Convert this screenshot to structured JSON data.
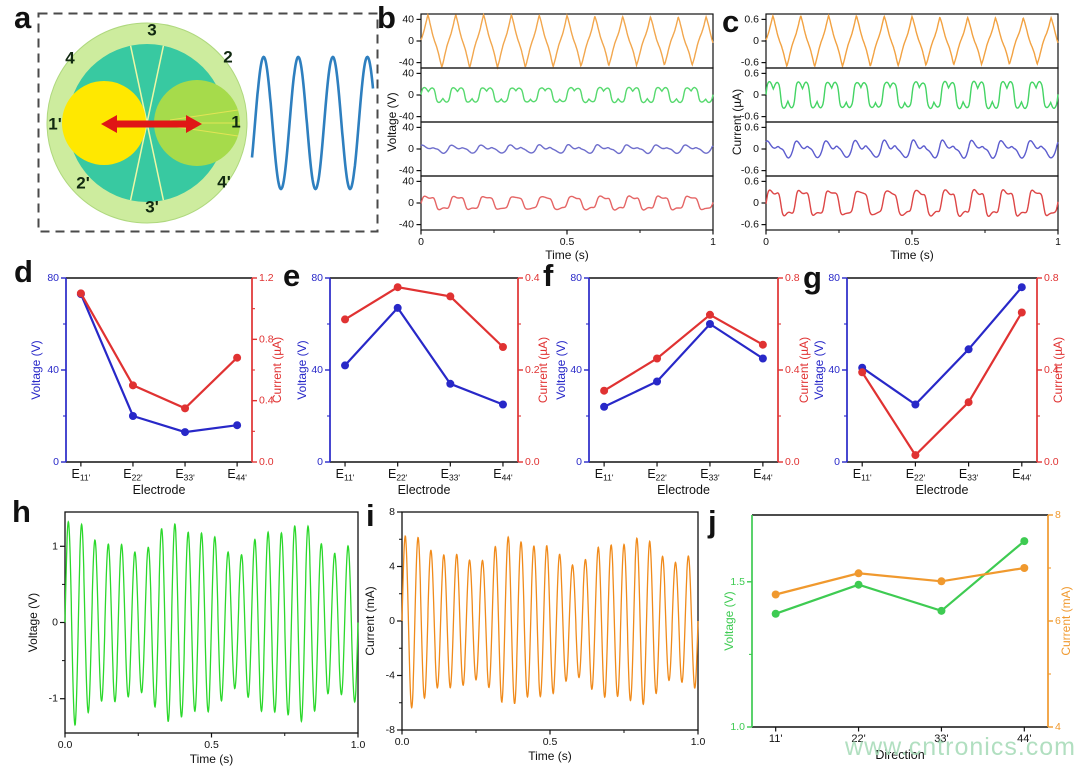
{
  "figure": {
    "watermark": "www.cntronics.com",
    "watermark_color": "#a9dcba"
  },
  "panel_a": {
    "label": "a",
    "ring_labels": [
      "1",
      "2",
      "3",
      "4",
      "1'",
      "2'",
      "3'",
      "4'"
    ],
    "colors": {
      "outer_ring": "#cdec9e",
      "inner_disc": "#38c9a1",
      "left_circle": "#ffe800",
      "right_circle": "#a6db4b",
      "arrow": "#e01616",
      "spoke": "#edf7a6",
      "wave": "#2e7fbf"
    },
    "wave": {
      "cycles": 3.5,
      "color": "#2e7fbf"
    }
  },
  "chart_data": [
    {
      "id": "b",
      "panel": "b",
      "type": "stacked_wave",
      "ylabel": "Voltage (V)",
      "xlabel": "Time (s)",
      "xticks": [
        "0",
        "0.5",
        "1"
      ],
      "xminor": [
        0.25,
        0.75
      ],
      "row_ticks": [
        40,
        0,
        -40
      ],
      "row_range": 50,
      "series": [
        {
          "name": "trace-1",
          "color": "#f2a74e",
          "shape": "triangle",
          "amplitude": 45,
          "cycles": 10.5
        },
        {
          "name": "trace-2",
          "color": "#56d96e",
          "shape": "humps",
          "amplitude": 13,
          "cycles": 10
        },
        {
          "name": "trace-3",
          "color": "#6e6ecc",
          "shape": "ripple",
          "amplitude": 8,
          "cycles": 10
        },
        {
          "name": "trace-4",
          "color": "#e56565",
          "shape": "rsq",
          "amplitude": 14,
          "cycles": 10
        }
      ]
    },
    {
      "id": "c",
      "panel": "c",
      "type": "stacked_wave",
      "ylabel": "Current (µA)",
      "xlabel": "Time (s)",
      "xticks": [
        "0",
        "0.5",
        "1"
      ],
      "xminor": [
        0.25,
        0.75
      ],
      "row_ticks": [
        0.6,
        0,
        -0.6
      ],
      "row_range": 0.75,
      "series": [
        {
          "name": "trace-1",
          "color": "#f2a242",
          "shape": "triangle",
          "amplitude": 0.65,
          "cycles": 10.5
        },
        {
          "name": "trace-2",
          "color": "#44d464",
          "shape": "humps",
          "amplitude": 0.35,
          "cycles": 10
        },
        {
          "name": "trace-3",
          "color": "#5c5cce",
          "shape": "ripple",
          "amplitude": 0.25,
          "cycles": 10
        },
        {
          "name": "trace-4",
          "color": "#dd4646",
          "shape": "rsq",
          "amplitude": 0.4,
          "cycles": 10
        }
      ]
    },
    {
      "id": "d",
      "panel": "d",
      "type": "dual_line",
      "xlabel": "Electrode",
      "categories": [
        "11'",
        "22'",
        "33'",
        "44'"
      ],
      "cat_prefix": "E",
      "left": {
        "label": "Voltage (V)",
        "color": "#2828c8",
        "min": 0,
        "max": 80,
        "ticks": [
          0,
          40,
          80
        ],
        "tick_labels": [
          "0",
          "40",
          "80"
        ],
        "minor": [
          20,
          60
        ],
        "values": [
          73,
          20,
          13,
          16
        ]
      },
      "right": {
        "label": "Current (µA)",
        "color": "#e03232",
        "min": 0,
        "max": 1.2,
        "ticks": [
          0,
          0.4,
          0.8,
          1.2
        ],
        "tick_labels": [
          "0.0",
          "0.4",
          "0.8",
          "1.2"
        ],
        "minor": [
          0.2,
          0.6,
          1.0
        ],
        "values": [
          1.1,
          0.5,
          0.35,
          0.68
        ]
      }
    },
    {
      "id": "e",
      "panel": "e",
      "type": "dual_line",
      "xlabel": "Electrode",
      "categories": [
        "11'",
        "22'",
        "33'",
        "44'"
      ],
      "cat_prefix": "E",
      "left": {
        "label": "Voltage (V)",
        "color": "#2828c8",
        "min": 0,
        "max": 80,
        "ticks": [
          0,
          40,
          80
        ],
        "tick_labels": [
          "0",
          "40",
          "80"
        ],
        "minor": [
          20,
          60
        ],
        "values": [
          42,
          67,
          34,
          25
        ]
      },
      "right": {
        "label": "Current (µA)",
        "color": "#e03232",
        "min": 0,
        "max": 0.4,
        "ticks": [
          0,
          0.2,
          0.4
        ],
        "tick_labels": [
          "0.0",
          "0.2",
          "0.4"
        ],
        "minor": [
          0.1,
          0.3
        ],
        "values": [
          0.31,
          0.38,
          0.36,
          0.25
        ]
      }
    },
    {
      "id": "f",
      "panel": "f",
      "type": "dual_line",
      "xlabel": "Electrode",
      "categories": [
        "11'",
        "22'",
        "33'",
        "44'"
      ],
      "cat_prefix": "E",
      "left": {
        "label": "Voltage (V)",
        "color": "#2828c8",
        "min": 0,
        "max": 80,
        "ticks": [
          0,
          40,
          80
        ],
        "tick_labels": [
          "0",
          "40",
          "80"
        ],
        "minor": [
          20,
          60
        ],
        "values": [
          24,
          35,
          60,
          45
        ]
      },
      "right": {
        "label": "Current (µA)",
        "color": "#e03232",
        "min": 0,
        "max": 0.8,
        "ticks": [
          0,
          0.4,
          0.8
        ],
        "tick_labels": [
          "0.0",
          "0.4",
          "0.8"
        ],
        "minor": [
          0.2,
          0.6
        ],
        "values": [
          0.31,
          0.45,
          0.64,
          0.51
        ]
      }
    },
    {
      "id": "g",
      "panel": "g",
      "type": "dual_line",
      "xlabel": "Electrode",
      "categories": [
        "11'",
        "22'",
        "33'",
        "44'"
      ],
      "cat_prefix": "E",
      "left": {
        "label": "Voltage (V)",
        "color": "#2828c8",
        "min": 0,
        "max": 80,
        "ticks": [
          0,
          40,
          80
        ],
        "tick_labels": [
          "0",
          "40",
          "80"
        ],
        "minor": [
          20,
          60
        ],
        "values": [
          41,
          25,
          49,
          76
        ]
      },
      "right": {
        "label": "Current (µA)",
        "color": "#e03232",
        "min": 0,
        "max": 0.8,
        "ticks": [
          0,
          0.4,
          0.8
        ],
        "tick_labels": [
          "0.0",
          "0.4",
          "0.8"
        ],
        "minor": [
          0.2,
          0.6
        ],
        "values": [
          0.39,
          0.03,
          0.26,
          0.65
        ]
      }
    },
    {
      "id": "h",
      "panel": "h",
      "type": "wave",
      "ylabel": "Voltage (V)",
      "xlabel": "Time (s)",
      "color": "#2bd82b",
      "ymin": -1.45,
      "ymax": 1.45,
      "yticks": [
        -1,
        0,
        1
      ],
      "ytick_labels": [
        "-1",
        "0",
        "1"
      ],
      "yminor": [
        -0.5,
        0.5
      ],
      "xticks": [
        "0.0",
        "0.5",
        "1.0"
      ],
      "xminor": [
        0.25,
        0.75
      ],
      "amplitude": 1.27,
      "cycles": 22
    },
    {
      "id": "i",
      "panel": "i",
      "type": "wave",
      "ylabel": "Current (mA)",
      "xlabel": "Time (s)",
      "color": "#f08a1a",
      "ymin": -8,
      "ymax": 8,
      "yticks": [
        -8,
        -4,
        0,
        4,
        8
      ],
      "ytick_labels": [
        "-8",
        "-4",
        "0",
        "4",
        "8"
      ],
      "yminor": [
        -6,
        -2,
        2,
        6
      ],
      "xticks": [
        "0.0",
        "0.5",
        "1.0"
      ],
      "xminor": [
        0.25,
        0.75
      ],
      "amplitude": 6.0,
      "cycles": 23
    },
    {
      "id": "j",
      "panel": "j",
      "type": "dual_line",
      "xlabel": "Direction",
      "categories": [
        "11'",
        "22'",
        "33'",
        "44'"
      ],
      "cat_prefix": "",
      "left": {
        "label": "Voltage (V)",
        "color": "#3ecb52",
        "min": 1.0,
        "max": 1.73,
        "ticks": [
          1.0,
          1.5
        ],
        "tick_labels": [
          "1.0",
          "1.5"
        ],
        "minor": [
          1.25
        ],
        "values": [
          1.39,
          1.49,
          1.4,
          1.64
        ]
      },
      "right": {
        "label": "Current (mA)",
        "color": "#f0992e",
        "min": 4,
        "max": 8,
        "ticks": [
          4,
          6,
          8
        ],
        "tick_labels": [
          "4",
          "6",
          "8"
        ],
        "minor": [
          5,
          7
        ],
        "values": [
          6.5,
          6.9,
          6.75,
          7.0
        ]
      }
    }
  ]
}
